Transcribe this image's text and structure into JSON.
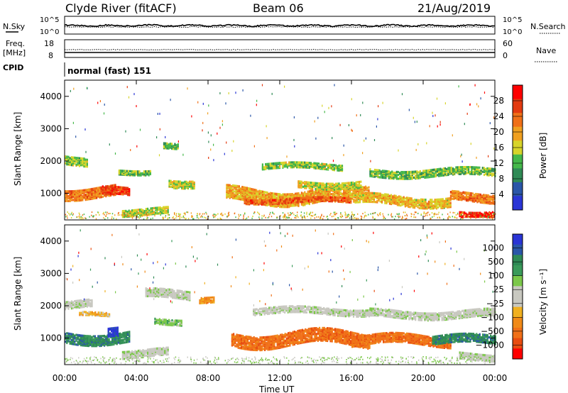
{
  "header": {
    "title": "Clyde River (fitACF)",
    "beam": "Beam 06",
    "date": "21/Aug/2019"
  },
  "top_panels": {
    "nsky_label": "N.Sky",
    "nsearch_label": "N.Search",
    "noise_ticks_left": [
      "10^5",
      "10^0"
    ],
    "noise_ticks_right": [
      "10^5",
      "10^0"
    ],
    "freq_label_1": "Freq.",
    "freq_label_2": "[MHz]",
    "freq_ticks": [
      "18",
      "8"
    ],
    "nave_label": "Nave",
    "nave_ticks": [
      "60",
      "0"
    ],
    "cpid_label": "CPID",
    "cpid_text": "normal (fast) 151"
  },
  "colors": {
    "power_scale": [
      "#2a35d6",
      "#2a56a8",
      "#2f8a55",
      "#45b84a",
      "#d7d42a",
      "#f0a020",
      "#f07018",
      "#e33a10",
      "#ff0000"
    ],
    "velocity_scale": [
      "#2a35d6",
      "#2a56a8",
      "#2f8a55",
      "#3a9a5a",
      "#7cc84a",
      "#c8c8c0",
      "#c8c8c0",
      "#f0b020",
      "#f08a18",
      "#f07018",
      "#e84c10",
      "#ff0000"
    ]
  },
  "chart_data": [
    {
      "type": "heatmap",
      "panel": "power",
      "ylabel": "Slant Range [km]",
      "yticks": [
        "1000",
        "2000",
        "3000",
        "4000"
      ],
      "ylim": [
        180,
        4500
      ],
      "xlim": [
        "00:00",
        "24:00"
      ],
      "colorbar_label": "Power [dB]",
      "colorbar_ticks": [
        "4",
        "8",
        "12",
        "16",
        "20",
        "24",
        "28"
      ],
      "colorbar_range": [
        0,
        30
      ],
      "echo_bands": [
        {
          "t_start": 0.0,
          "t_end": 1.3,
          "range_center": 2000,
          "range_width": 250,
          "level": 13
        },
        {
          "t_start": 0.0,
          "t_end": 2.8,
          "range_center": 1000,
          "range_width": 320,
          "level": 21
        },
        {
          "t_start": 2.0,
          "t_end": 3.6,
          "range_center": 1000,
          "range_width": 220,
          "level": 25
        },
        {
          "t_start": 3.0,
          "t_end": 4.8,
          "range_center": 1650,
          "range_width": 150,
          "level": 12
        },
        {
          "t_start": 3.2,
          "t_end": 5.8,
          "range_center": 400,
          "range_width": 200,
          "level": 14
        },
        {
          "t_start": 5.5,
          "t_end": 6.3,
          "range_center": 2400,
          "range_width": 160,
          "level": 11
        },
        {
          "t_start": 5.8,
          "t_end": 7.2,
          "range_center": 1300,
          "range_width": 220,
          "level": 15
        },
        {
          "t_start": 9.0,
          "t_end": 17.0,
          "range_center": 900,
          "range_width": 420,
          "level": 18
        },
        {
          "t_start": 10.0,
          "t_end": 16.0,
          "range_center": 750,
          "range_width": 150,
          "level": 23
        },
        {
          "t_start": 11.0,
          "t_end": 15.5,
          "range_center": 1800,
          "range_width": 180,
          "level": 13
        },
        {
          "t_start": 13.0,
          "t_end": 16.5,
          "range_center": 1250,
          "range_width": 200,
          "level": 15
        },
        {
          "t_start": 16.0,
          "t_end": 21.5,
          "range_center": 750,
          "range_width": 300,
          "level": 17
        },
        {
          "t_start": 17.0,
          "t_end": 24.0,
          "range_center": 1600,
          "range_width": 220,
          "level": 12
        },
        {
          "t_start": 21.5,
          "t_end": 24.0,
          "range_center": 850,
          "range_width": 250,
          "level": 21
        },
        {
          "t_start": 22.0,
          "t_end": 24.0,
          "range_center": 350,
          "range_width": 200,
          "level": 28
        }
      ]
    },
    {
      "type": "heatmap",
      "panel": "velocity",
      "ylabel": "Slant Range [km]",
      "yticks": [
        "1000",
        "2000",
        "3000",
        "4000"
      ],
      "ylim": [
        180,
        4500
      ],
      "xlim": [
        "00:00",
        "24:00"
      ],
      "xticks": [
        "00:00",
        "04:00",
        "08:00",
        "12:00",
        "16:00",
        "20:00",
        "00:00"
      ],
      "xlabel": "Time UT",
      "colorbar_label": "Velocity [m s⁻¹]",
      "colorbar_ticks": [
        "1000",
        "500",
        "100",
        "25",
        "−25",
        "−100",
        "−500",
        "−1000"
      ],
      "echo_bands": [
        {
          "t_start": 0.0,
          "t_end": 3.6,
          "range_center": 1000,
          "range_width": 330,
          "level": 2
        },
        {
          "t_start": 2.4,
          "t_end": 3.0,
          "range_center": 1100,
          "range_width": 250,
          "level": 0
        },
        {
          "t_start": 0.0,
          "t_end": 1.5,
          "range_center": 2000,
          "range_width": 220,
          "level": 5
        },
        {
          "t_start": 0.8,
          "t_end": 2.5,
          "range_center": 1700,
          "range_width": 120,
          "level": 7
        },
        {
          "t_start": 3.2,
          "t_end": 5.8,
          "range_center": 500,
          "range_width": 220,
          "level": 5
        },
        {
          "t_start": 4.5,
          "t_end": 7.0,
          "range_center": 2300,
          "range_width": 250,
          "level": 5
        },
        {
          "t_start": 5.0,
          "t_end": 6.5,
          "range_center": 1500,
          "range_width": 180,
          "level": 4
        },
        {
          "t_start": 7.5,
          "t_end": 8.3,
          "range_center": 2100,
          "range_width": 160,
          "level": 8
        },
        {
          "t_start": 9.3,
          "t_end": 17.0,
          "range_center": 950,
          "range_width": 420,
          "level": 9
        },
        {
          "t_start": 10.5,
          "t_end": 17.0,
          "range_center": 1800,
          "range_width": 200,
          "level": 5
        },
        {
          "t_start": 16.0,
          "t_end": 21.5,
          "range_center": 900,
          "range_width": 300,
          "level": 9
        },
        {
          "t_start": 17.0,
          "t_end": 24.0,
          "range_center": 1700,
          "range_width": 220,
          "level": 5
        },
        {
          "t_start": 20.5,
          "t_end": 24.0,
          "range_center": 900,
          "range_width": 260,
          "level": 2
        },
        {
          "t_start": 22.0,
          "t_end": 24.0,
          "range_center": 400,
          "range_width": 200,
          "level": 5
        }
      ]
    }
  ]
}
